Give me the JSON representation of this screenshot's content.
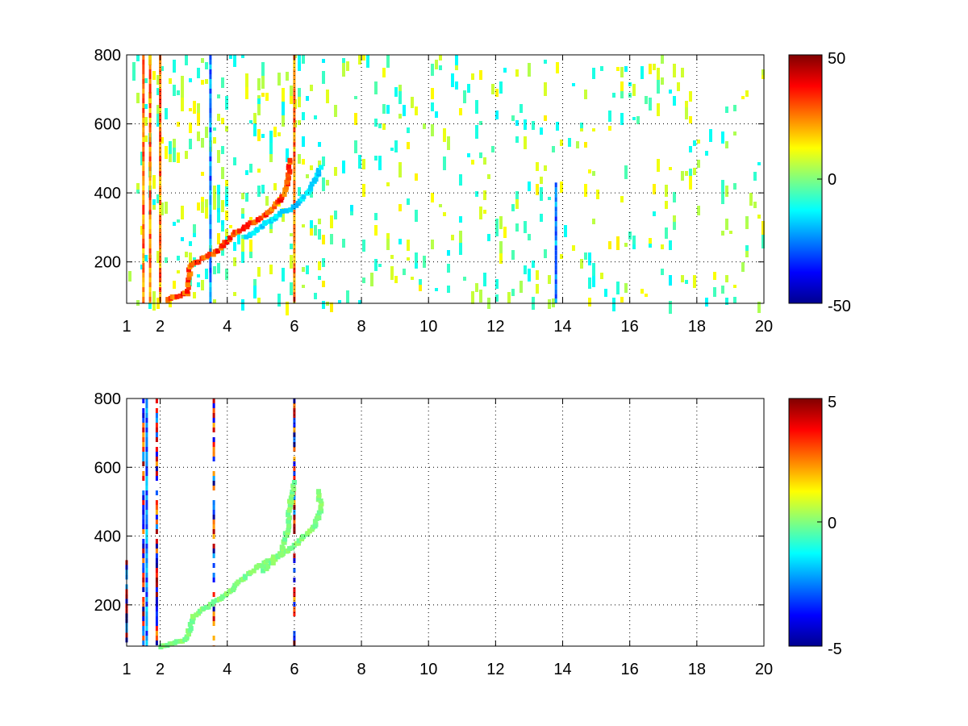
{
  "chart_data": [
    {
      "type": "heatmap",
      "title": "",
      "xlabel": "",
      "ylabel": "",
      "xlim": [
        1,
        20
      ],
      "ylim": [
        80,
        800
      ],
      "x_ticks": [
        "1",
        "2",
        "4",
        "6",
        "8",
        "10",
        "12",
        "14",
        "16",
        "18",
        "20"
      ],
      "y_ticks": [
        "200",
        "400",
        "600",
        "800"
      ],
      "grid": true,
      "colormap": "jet",
      "colorbar": {
        "range": [
          -50,
          50
        ],
        "ticks": [
          "50",
          "0",
          "-50"
        ]
      },
      "features": [
        {
          "kind": "ridge",
          "sign": "positive",
          "points": [
            [
              2.2,
              90
            ],
            [
              2.8,
              110
            ],
            [
              2.9,
              190
            ],
            [
              3.3,
              210
            ],
            [
              3.7,
              230
            ],
            [
              4.2,
              280
            ],
            [
              4.7,
              310
            ],
            [
              5.2,
              340
            ],
            [
              5.6,
              380
            ],
            [
              5.8,
              430
            ],
            [
              5.9,
              500
            ]
          ]
        },
        {
          "kind": "ridge",
          "sign": "negative",
          "points": [
            [
              4.6,
              270
            ],
            [
              5.1,
              310
            ],
            [
              5.6,
              340
            ],
            [
              6.0,
              360
            ],
            [
              6.3,
              390
            ],
            [
              6.6,
              430
            ],
            [
              6.8,
              480
            ]
          ]
        },
        {
          "kind": "vertical-streak",
          "x": 1.5,
          "sign": "positive"
        },
        {
          "kind": "vertical-streak",
          "x": 1.7,
          "sign": "positive"
        },
        {
          "kind": "vertical-streak",
          "x": 2.0,
          "sign": "positive"
        },
        {
          "kind": "vertical-streak",
          "x": 3.5,
          "sign": "negative"
        },
        {
          "kind": "vertical-streak",
          "x": 6.0,
          "sign": "positive"
        },
        {
          "kind": "vertical-streak",
          "x": 13.8,
          "sign": "negative",
          "ymax": 430
        }
      ],
      "background": "sparse scattered speckles of small magnitude (about -15 to 15) across the full plane"
    },
    {
      "type": "heatmap",
      "title": "",
      "xlabel": "",
      "ylabel": "",
      "xlim": [
        1,
        20
      ],
      "ylim": [
        80,
        800
      ],
      "x_ticks": [
        "1",
        "2",
        "4",
        "6",
        "8",
        "10",
        "12",
        "14",
        "16",
        "18",
        "20"
      ],
      "y_ticks": [
        "200",
        "400",
        "600",
        "800"
      ],
      "grid": true,
      "colormap": "jet",
      "colorbar": {
        "range": [
          -5,
          5
        ],
        "ticks": [
          "5",
          "0",
          "-5"
        ]
      },
      "features": [
        {
          "kind": "ridge",
          "sign": "near-zero",
          "points": [
            [
              2.0,
              80
            ],
            [
              2.8,
              100
            ],
            [
              3.0,
              170
            ],
            [
              3.5,
              200
            ],
            [
              4.0,
              230
            ],
            [
              4.6,
              290
            ],
            [
              5.1,
              320
            ],
            [
              5.6,
              350
            ],
            [
              5.8,
              420
            ],
            [
              5.9,
              510
            ],
            [
              6.0,
              560
            ]
          ]
        },
        {
          "kind": "ridge",
          "sign": "near-zero",
          "points": [
            [
              5.1,
              300
            ],
            [
              5.5,
              340
            ],
            [
              6.0,
              370
            ],
            [
              6.3,
              400
            ],
            [
              6.6,
              430
            ],
            [
              6.8,
              480
            ],
            [
              6.7,
              540
            ]
          ]
        },
        {
          "kind": "vertical-streak",
          "x": 1.5,
          "sign": "mixed"
        },
        {
          "kind": "vertical-streak",
          "x": 1.6,
          "sign": "negative"
        },
        {
          "kind": "vertical-streak",
          "x": 1.9,
          "sign": "mixed"
        },
        {
          "kind": "vertical-streak",
          "x": 3.6,
          "sign": "mixed"
        },
        {
          "kind": "vertical-streak",
          "x": 6.0,
          "sign": "mixed"
        },
        {
          "kind": "vertical-streak",
          "x": 1.0,
          "sign": "mixed",
          "ymax": 330
        }
      ],
      "background": "empty"
    }
  ]
}
